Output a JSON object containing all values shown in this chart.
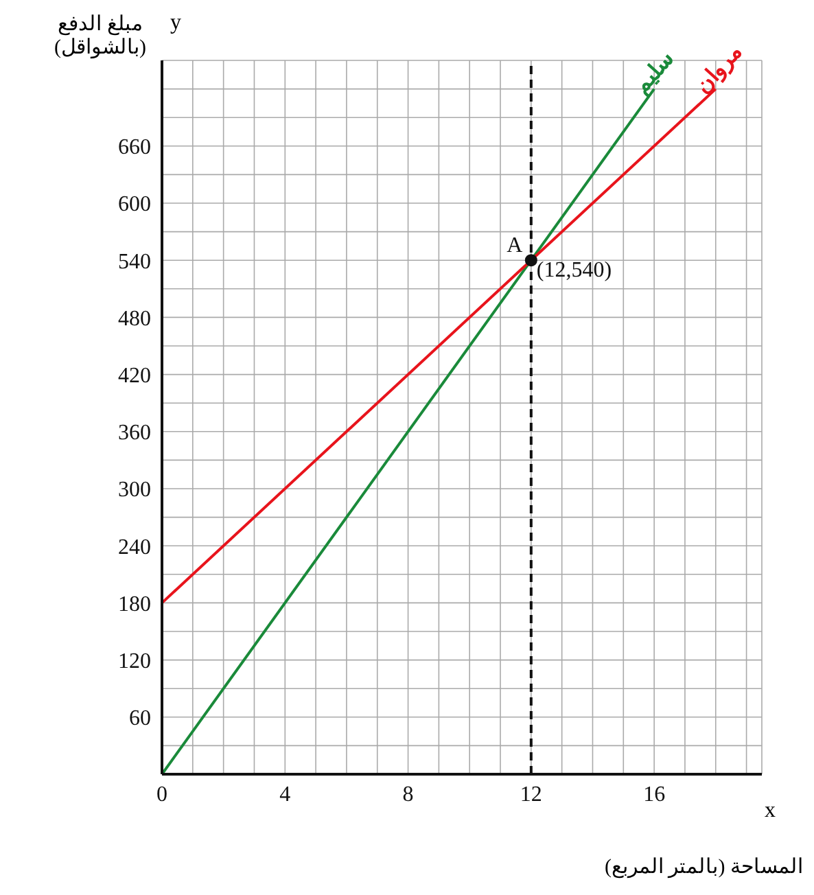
{
  "chart_data": {
    "type": "line",
    "xlabel": "المساحة (بالمتر المربع)",
    "ylabel": "مبلغ الدفع (بالشواقل)",
    "series": [
      {
        "name": "سليم",
        "color": "#1a8a3a",
        "x": [
          0,
          16
        ],
        "values": [
          0,
          720
        ]
      },
      {
        "name": "مروان",
        "color": "#e8141c",
        "x": [
          0,
          18
        ],
        "values": [
          180,
          720
        ]
      },
      {
        "type": "scatter",
        "color": "#111111",
        "x": [
          12
        ],
        "values": [
          540
        ],
        "marker": "circle"
      }
    ],
    "xlim": [
      0,
      19.5
    ],
    "ylim": [
      0,
      750
    ],
    "xticks": [
      0,
      {
        "value": 1,
        "label": null
      },
      {
        "value": 2,
        "label": null
      },
      {
        "value": 3,
        "label": null
      },
      4,
      {
        "value": 5,
        "label": null
      },
      {
        "value": 6,
        "label": null
      },
      {
        "value": 7,
        "label": null
      },
      8,
      {
        "value": 9,
        "label": null
      },
      {
        "value": 10,
        "label": null
      },
      {
        "value": 11,
        "label": null
      },
      12,
      {
        "value": 13,
        "label": null
      },
      {
        "value": 14,
        "label": null
      },
      {
        "value": 15,
        "label": null
      },
      16,
      {
        "value": 17,
        "label": null
      },
      {
        "value": 18,
        "label": null
      },
      {
        "value": 19,
        "label": null
      }
    ],
    "yticks": [
      {
        "value": 30,
        "label": null
      },
      60,
      {
        "value": 90,
        "label": null
      },
      120,
      {
        "value": 150,
        "label": null
      },
      180,
      {
        "value": 210,
        "label": null
      },
      240,
      {
        "value": 270,
        "label": null
      },
      300,
      {
        "value": 330,
        "label": null
      },
      360,
      {
        "value": 390,
        "label": null
      },
      420,
      {
        "value": 450,
        "label": null
      },
      480,
      {
        "value": 510,
        "label": null
      },
      540,
      {
        "value": 570,
        "label": null
      },
      600,
      {
        "value": 630,
        "label": null
      },
      660,
      {
        "value": 690,
        "label": null
      },
      {
        "value": 720,
        "label": null
      }
    ],
    "ref_lines": [
      {
        "axis": "x",
        "value": 12,
        "color": "#111111",
        "line_style": "dashed"
      }
    ],
    "annotations": [
      "x",
      "y",
      {
        "text": "A",
        "x": 12,
        "y": 540
      },
      {
        "text": "(12,540)",
        "x": 12,
        "y": 540
      }
    ],
    "grid": true,
    "marker": "none",
    "line_style": "solid"
  }
}
